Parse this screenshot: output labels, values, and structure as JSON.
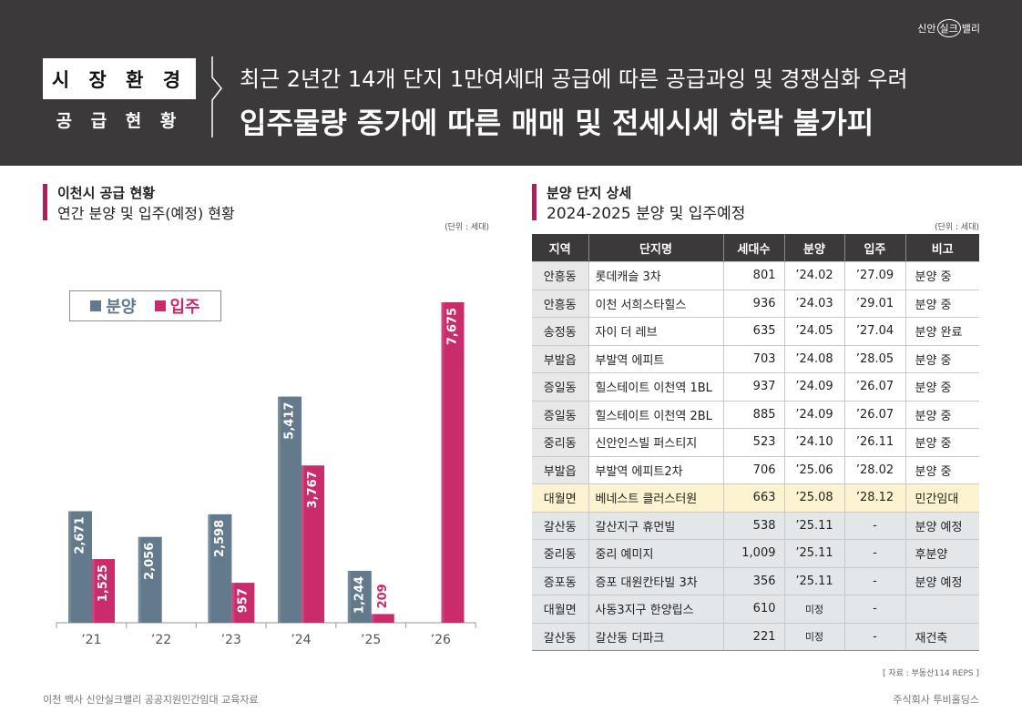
{
  "logo": {
    "part1": "신안",
    "part2": "실크",
    "part3": "밸리"
  },
  "header": {
    "category_main": "시 장 환 경",
    "category_sub": "공 급 현 황",
    "headline_1": "최근 2년간 14개 단지 1만여세대 공급에 따른 공급과잉 및 경쟁심화 우려",
    "headline_2": "입주물량 증가에 따른 매매 및 전세시세 하락 불가피"
  },
  "colors": {
    "banner": "#3b3939",
    "accent": "#a8235d",
    "presale": "#627a8b",
    "move_in": "#c92b6b",
    "highlight_row": "#fdf3d1",
    "shaded_row": "#e4e7ea",
    "region_cell": "#e8e8e8",
    "table_header": "#3b3939"
  },
  "chart_data": {
    "type": "bar",
    "title": "이천시 공급 현황",
    "subtitle": "연간 분양 및 입주(예정) 현황",
    "unit": "(단위 : 세대)",
    "xlabel": "",
    "ylabel": "",
    "legend_position": "top-left",
    "categories": [
      "’21",
      "’22",
      "’23",
      "’24",
      "’25",
      "’26"
    ],
    "series": [
      {
        "name": "분양",
        "color": "#627a8b",
        "values": [
          2671,
          2056,
          2598,
          5417,
          1244,
          null
        ],
        "labels": [
          "2,671",
          "2,056",
          "2,598",
          "5,417",
          "1,244",
          null
        ]
      },
      {
        "name": "입주",
        "color": "#c92b6b",
        "values": [
          1525,
          null,
          957,
          3767,
          209,
          7675
        ],
        "labels": [
          "1,525",
          null,
          "957",
          "3,767",
          "209",
          "7,675"
        ]
      }
    ]
  },
  "right_panel": {
    "title": "분양 단지 상세",
    "subtitle": "2024-2025 분양 및 입주예정",
    "unit": "(단위 : 세대)"
  },
  "table": {
    "columns": [
      "지역",
      "단지명",
      "세대수",
      "분양",
      "입주",
      "비고"
    ],
    "rows": [
      {
        "cells": [
          "안흥동",
          "롯데캐슬 3차",
          "801",
          "’24.02",
          "’27.09",
          "분양 중"
        ]
      },
      {
        "cells": [
          "안흥동",
          "이천 서희스타힐스",
          "936",
          "’24.03",
          "’29.01",
          "분양 중"
        ]
      },
      {
        "cells": [
          "송정동",
          "자이 더 레브",
          "635",
          "’24.05",
          "’27.04",
          "분양 완료"
        ]
      },
      {
        "cells": [
          "부발읍",
          "부발역 에피트",
          "703",
          "’24.08",
          "’28.05",
          "분양 중"
        ]
      },
      {
        "cells": [
          "증일동",
          "힐스테이트 이천역 1BL",
          "937",
          "’24.09",
          "’26.07",
          "분양 중"
        ]
      },
      {
        "cells": [
          "증일동",
          "힐스테이트 이천역 2BL",
          "885",
          "’24.09",
          "’26.07",
          "분양 중"
        ]
      },
      {
        "cells": [
          "중리동",
          "신안인스빌 퍼스티지",
          "523",
          "’24.10",
          "’26.11",
          "분양 중"
        ]
      },
      {
        "cells": [
          "부발읍",
          "부발역 에피트2차",
          "706",
          "’25.06",
          "’28.02",
          "분양 중"
        ]
      },
      {
        "cells": [
          "대월면",
          "베네스트 클러스터원",
          "663",
          "’25.08",
          "’28.12",
          "민간임대"
        ],
        "highlight": true
      },
      {
        "cells": [
          "갈산동",
          "갈산지구 휴먼빌",
          "538",
          "’25.11",
          "-",
          "분양 예정"
        ],
        "shaded": true
      },
      {
        "cells": [
          "중리동",
          "중리 예미지",
          "1,009",
          "’25.11",
          "-",
          "후분양"
        ],
        "shaded": true
      },
      {
        "cells": [
          "증포동",
          "증포 대원칸타빌 3차",
          "356",
          "’25.11",
          "-",
          "분양 예정"
        ],
        "shaded": true
      },
      {
        "cells": [
          "대월면",
          "사동3지구 한양립스",
          "610",
          "미정",
          "-",
          ""
        ],
        "shaded": true
      },
      {
        "cells": [
          "갈산동",
          "갈산동 더파크",
          "221",
          "미정",
          "-",
          "재건축"
        ],
        "shaded": true
      }
    ]
  },
  "source": "[ 자료 : 부동산114 REPS ]",
  "footer": {
    "left": "이천 백사 신안실크밸리 공공지원민간임대 교육자료",
    "right": "주식회사 투비홀딩스"
  }
}
